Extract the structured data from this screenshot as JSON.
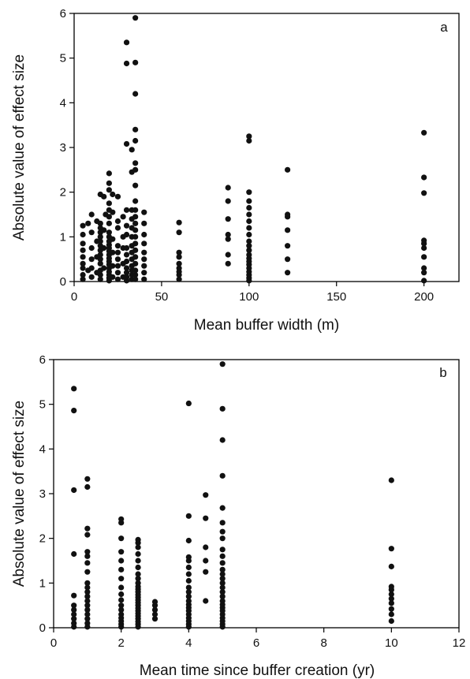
{
  "chart_data": [
    {
      "type": "scatter",
      "panel": "a",
      "xlabel": "Mean buffer width (m)",
      "ylabel": "Absolute value of effect size",
      "xlim": [
        0,
        220
      ],
      "ylim": [
        0,
        6
      ],
      "xticks": [
        0,
        50,
        100,
        150,
        200
      ],
      "yticks": [
        0,
        1,
        2,
        3,
        4,
        5,
        6
      ],
      "grid": false,
      "points": [
        [
          5,
          0.05
        ],
        [
          5,
          0.15
        ],
        [
          5,
          0.3
        ],
        [
          5,
          0.4
        ],
        [
          5,
          0.55
        ],
        [
          5,
          0.7
        ],
        [
          5,
          0.85
        ],
        [
          5,
          1.05
        ],
        [
          5,
          1.25
        ],
        [
          10,
          0.1
        ],
        [
          10,
          0.3
        ],
        [
          10,
          0.5
        ],
        [
          10,
          0.75
        ],
        [
          10,
          1.1
        ],
        [
          10,
          1.5
        ],
        [
          8,
          0.25
        ],
        [
          8,
          1.3
        ],
        [
          15,
          0.05
        ],
        [
          15,
          0.15
        ],
        [
          15,
          0.25
        ],
        [
          15,
          0.4
        ],
        [
          15,
          0.5
        ],
        [
          15,
          0.6
        ],
        [
          15,
          0.7
        ],
        [
          15,
          0.8
        ],
        [
          15,
          0.9
        ],
        [
          15,
          1.0
        ],
        [
          15,
          1.1
        ],
        [
          15,
          1.2
        ],
        [
          15,
          1.3
        ],
        [
          15,
          1.95
        ],
        [
          13,
          0.2
        ],
        [
          13,
          0.55
        ],
        [
          13,
          0.9
        ],
        [
          13,
          1.35
        ],
        [
          17,
          0.3
        ],
        [
          17,
          0.75
        ],
        [
          17,
          1.15
        ],
        [
          17,
          1.9
        ],
        [
          18,
          1.5
        ],
        [
          20,
          0.02
        ],
        [
          20,
          0.08
        ],
        [
          20,
          0.15
        ],
        [
          20,
          0.22
        ],
        [
          20,
          0.3
        ],
        [
          20,
          0.38
        ],
        [
          20,
          0.45
        ],
        [
          20,
          0.52
        ],
        [
          20,
          0.6
        ],
        [
          20,
          0.68
        ],
        [
          20,
          0.75
        ],
        [
          20,
          0.82
        ],
        [
          20,
          0.9
        ],
        [
          20,
          1.0
        ],
        [
          20,
          1.1
        ],
        [
          20,
          1.3
        ],
        [
          20,
          1.45
        ],
        [
          20,
          1.6
        ],
        [
          20,
          1.75
        ],
        [
          20,
          2.05
        ],
        [
          20,
          2.2
        ],
        [
          20,
          2.42
        ],
        [
          22,
          0.1
        ],
        [
          22,
          0.35
        ],
        [
          22,
          0.65
        ],
        [
          22,
          0.95
        ],
        [
          22,
          1.55
        ],
        [
          22,
          1.95
        ],
        [
          25,
          0.05
        ],
        [
          25,
          0.2
        ],
        [
          25,
          0.35
        ],
        [
          25,
          0.5
        ],
        [
          25,
          0.65
        ],
        [
          25,
          0.8
        ],
        [
          25,
          1.2
        ],
        [
          25,
          1.35
        ],
        [
          25,
          1.9
        ],
        [
          28,
          0.1
        ],
        [
          28,
          0.4
        ],
        [
          28,
          0.75
        ],
        [
          28,
          1.0
        ],
        [
          28,
          1.45
        ],
        [
          30,
          0.02
        ],
        [
          30,
          0.1
        ],
        [
          30,
          0.2
        ],
        [
          30,
          0.3
        ],
        [
          30,
          0.45
        ],
        [
          30,
          0.6
        ],
        [
          30,
          0.75
        ],
        [
          30,
          1.05
        ],
        [
          30,
          1.25
        ],
        [
          30,
          1.6
        ],
        [
          30,
          3.08
        ],
        [
          30,
          4.88
        ],
        [
          30,
          5.35
        ],
        [
          33,
          0.05
        ],
        [
          33,
          0.15
        ],
        [
          33,
          0.25
        ],
        [
          33,
          0.35
        ],
        [
          33,
          0.5
        ],
        [
          33,
          0.65
        ],
        [
          33,
          0.8
        ],
        [
          33,
          1.0
        ],
        [
          33,
          1.2
        ],
        [
          33,
          1.4
        ],
        [
          33,
          1.6
        ],
        [
          33,
          2.45
        ],
        [
          33,
          2.95
        ],
        [
          35,
          0.05
        ],
        [
          35,
          0.15
        ],
        [
          35,
          0.25
        ],
        [
          35,
          0.4
        ],
        [
          35,
          0.55
        ],
        [
          35,
          0.7
        ],
        [
          35,
          0.85
        ],
        [
          35,
          1.0
        ],
        [
          35,
          1.15
        ],
        [
          35,
          1.3
        ],
        [
          35,
          1.45
        ],
        [
          35,
          1.6
        ],
        [
          35,
          1.8
        ],
        [
          35,
          2.15
        ],
        [
          35,
          2.5
        ],
        [
          35,
          2.65
        ],
        [
          35,
          3.15
        ],
        [
          35,
          3.4
        ],
        [
          35,
          4.2
        ],
        [
          35,
          4.9
        ],
        [
          35,
          5.9
        ],
        [
          40,
          0.05
        ],
        [
          40,
          0.2
        ],
        [
          40,
          0.35
        ],
        [
          40,
          0.5
        ],
        [
          40,
          0.65
        ],
        [
          40,
          0.85
        ],
        [
          40,
          1.05
        ],
        [
          40,
          1.3
        ],
        [
          40,
          1.55
        ],
        [
          60,
          0.05
        ],
        [
          60,
          0.15
        ],
        [
          60,
          0.22
        ],
        [
          60,
          0.3
        ],
        [
          60,
          0.4
        ],
        [
          60,
          0.55
        ],
        [
          60,
          0.65
        ],
        [
          60,
          1.1
        ],
        [
          60,
          1.32
        ],
        [
          88,
          0.4
        ],
        [
          88,
          0.6
        ],
        [
          88,
          0.95
        ],
        [
          88,
          1.05
        ],
        [
          88,
          1.4
        ],
        [
          88,
          1.8
        ],
        [
          88,
          2.1
        ],
        [
          100,
          0.02
        ],
        [
          100,
          0.08
        ],
        [
          100,
          0.15
        ],
        [
          100,
          0.22
        ],
        [
          100,
          0.3
        ],
        [
          100,
          0.38
        ],
        [
          100,
          0.45
        ],
        [
          100,
          0.52
        ],
        [
          100,
          0.6
        ],
        [
          100,
          0.7
        ],
        [
          100,
          0.8
        ],
        [
          100,
          0.9
        ],
        [
          100,
          1.05
        ],
        [
          100,
          1.2
        ],
        [
          100,
          1.35
        ],
        [
          100,
          1.5
        ],
        [
          100,
          1.65
        ],
        [
          100,
          1.8
        ],
        [
          100,
          2.0
        ],
        [
          100,
          3.15
        ],
        [
          100,
          3.25
        ],
        [
          122,
          0.2
        ],
        [
          122,
          0.5
        ],
        [
          122,
          0.8
        ],
        [
          122,
          1.15
        ],
        [
          122,
          1.45
        ],
        [
          122,
          1.5
        ],
        [
          122,
          2.5
        ],
        [
          200,
          0.02
        ],
        [
          200,
          0.2
        ],
        [
          200,
          0.3
        ],
        [
          200,
          0.55
        ],
        [
          200,
          0.75
        ],
        [
          200,
          0.85
        ],
        [
          200,
          0.92
        ],
        [
          200,
          1.98
        ],
        [
          200,
          2.33
        ],
        [
          200,
          3.33
        ]
      ]
    },
    {
      "type": "scatter",
      "panel": "b",
      "xlabel": "Mean time since buffer creation (yr)",
      "ylabel": "Absolute value of effect size",
      "xlim": [
        0,
        12
      ],
      "ylim": [
        0,
        6
      ],
      "xticks": [
        0,
        2,
        4,
        6,
        8,
        10,
        12
      ],
      "yticks": [
        0,
        1,
        2,
        3,
        4,
        5,
        6
      ],
      "grid": false,
      "points": [
        [
          0.6,
          0.02
        ],
        [
          0.6,
          0.1
        ],
        [
          0.6,
          0.2
        ],
        [
          0.6,
          0.3
        ],
        [
          0.6,
          0.4
        ],
        [
          0.6,
          0.5
        ],
        [
          0.6,
          0.72
        ],
        [
          0.6,
          1.65
        ],
        [
          0.6,
          3.08
        ],
        [
          0.6,
          4.86
        ],
        [
          0.6,
          5.35
        ],
        [
          1,
          0.02
        ],
        [
          1,
          0.1
        ],
        [
          1,
          0.2
        ],
        [
          1,
          0.3
        ],
        [
          1,
          0.4
        ],
        [
          1,
          0.5
        ],
        [
          1,
          0.6
        ],
        [
          1,
          0.7
        ],
        [
          1,
          0.8
        ],
        [
          1,
          0.9
        ],
        [
          1,
          1.0
        ],
        [
          1,
          1.25
        ],
        [
          1,
          1.45
        ],
        [
          1,
          1.6
        ],
        [
          1,
          1.7
        ],
        [
          1,
          2.08
        ],
        [
          1,
          2.22
        ],
        [
          1,
          3.15
        ],
        [
          1,
          3.33
        ],
        [
          2,
          0.02
        ],
        [
          2,
          0.08
        ],
        [
          2,
          0.15
        ],
        [
          2,
          0.22
        ],
        [
          2,
          0.3
        ],
        [
          2,
          0.4
        ],
        [
          2,
          0.5
        ],
        [
          2,
          0.62
        ],
        [
          2,
          0.75
        ],
        [
          2,
          0.9
        ],
        [
          2,
          1.1
        ],
        [
          2,
          1.3
        ],
        [
          2,
          1.5
        ],
        [
          2,
          1.7
        ],
        [
          2,
          2.0
        ],
        [
          2,
          2.35
        ],
        [
          2,
          2.43
        ],
        [
          2.5,
          0.02
        ],
        [
          2.5,
          0.08
        ],
        [
          2.5,
          0.14
        ],
        [
          2.5,
          0.2
        ],
        [
          2.5,
          0.26
        ],
        [
          2.5,
          0.32
        ],
        [
          2.5,
          0.38
        ],
        [
          2.5,
          0.44
        ],
        [
          2.5,
          0.5
        ],
        [
          2.5,
          0.56
        ],
        [
          2.5,
          0.62
        ],
        [
          2.5,
          0.68
        ],
        [
          2.5,
          0.74
        ],
        [
          2.5,
          0.8
        ],
        [
          2.5,
          0.86
        ],
        [
          2.5,
          0.92
        ],
        [
          2.5,
          1.0
        ],
        [
          2.5,
          1.1
        ],
        [
          2.5,
          1.2
        ],
        [
          2.5,
          1.35
        ],
        [
          2.5,
          1.5
        ],
        [
          2.5,
          1.65
        ],
        [
          2.5,
          1.8
        ],
        [
          2.5,
          1.9
        ],
        [
          2.5,
          1.97
        ],
        [
          3,
          0.2
        ],
        [
          3,
          0.3
        ],
        [
          3,
          0.4
        ],
        [
          3,
          0.5
        ],
        [
          3,
          0.58
        ],
        [
          4,
          0.02
        ],
        [
          4,
          0.08
        ],
        [
          4,
          0.15
        ],
        [
          4,
          0.22
        ],
        [
          4,
          0.3
        ],
        [
          4,
          0.38
        ],
        [
          4,
          0.45
        ],
        [
          4,
          0.52
        ],
        [
          4,
          0.6
        ],
        [
          4,
          0.7
        ],
        [
          4,
          0.8
        ],
        [
          4,
          0.9
        ],
        [
          4,
          1.05
        ],
        [
          4,
          1.2
        ],
        [
          4,
          1.35
        ],
        [
          4,
          1.5
        ],
        [
          4,
          1.58
        ],
        [
          4,
          1.95
        ],
        [
          4,
          2.5
        ],
        [
          4,
          5.02
        ],
        [
          4.5,
          0.6
        ],
        [
          4.5,
          1.25
        ],
        [
          4.5,
          1.5
        ],
        [
          4.5,
          1.8
        ],
        [
          4.5,
          2.45
        ],
        [
          4.5,
          2.97
        ],
        [
          5,
          0.02
        ],
        [
          5,
          0.08
        ],
        [
          5,
          0.15
        ],
        [
          5,
          0.22
        ],
        [
          5,
          0.3
        ],
        [
          5,
          0.38
        ],
        [
          5,
          0.45
        ],
        [
          5,
          0.52
        ],
        [
          5,
          0.6
        ],
        [
          5,
          0.7
        ],
        [
          5,
          0.8
        ],
        [
          5,
          0.9
        ],
        [
          5,
          1.0
        ],
        [
          5,
          1.1
        ],
        [
          5,
          1.2
        ],
        [
          5,
          1.3
        ],
        [
          5,
          1.45
        ],
        [
          5,
          1.6
        ],
        [
          5,
          1.75
        ],
        [
          5,
          2.0
        ],
        [
          5,
          2.15
        ],
        [
          5,
          2.35
        ],
        [
          5,
          2.68
        ],
        [
          5,
          3.4
        ],
        [
          5,
          4.2
        ],
        [
          5,
          4.9
        ],
        [
          5,
          5.9
        ],
        [
          10,
          0.15
        ],
        [
          10,
          0.3
        ],
        [
          10,
          0.42
        ],
        [
          10,
          0.55
        ],
        [
          10,
          0.65
        ],
        [
          10,
          0.75
        ],
        [
          10,
          0.85
        ],
        [
          10,
          0.92
        ],
        [
          10,
          1.37
        ],
        [
          10,
          1.77
        ],
        [
          10,
          3.3
        ]
      ]
    }
  ]
}
